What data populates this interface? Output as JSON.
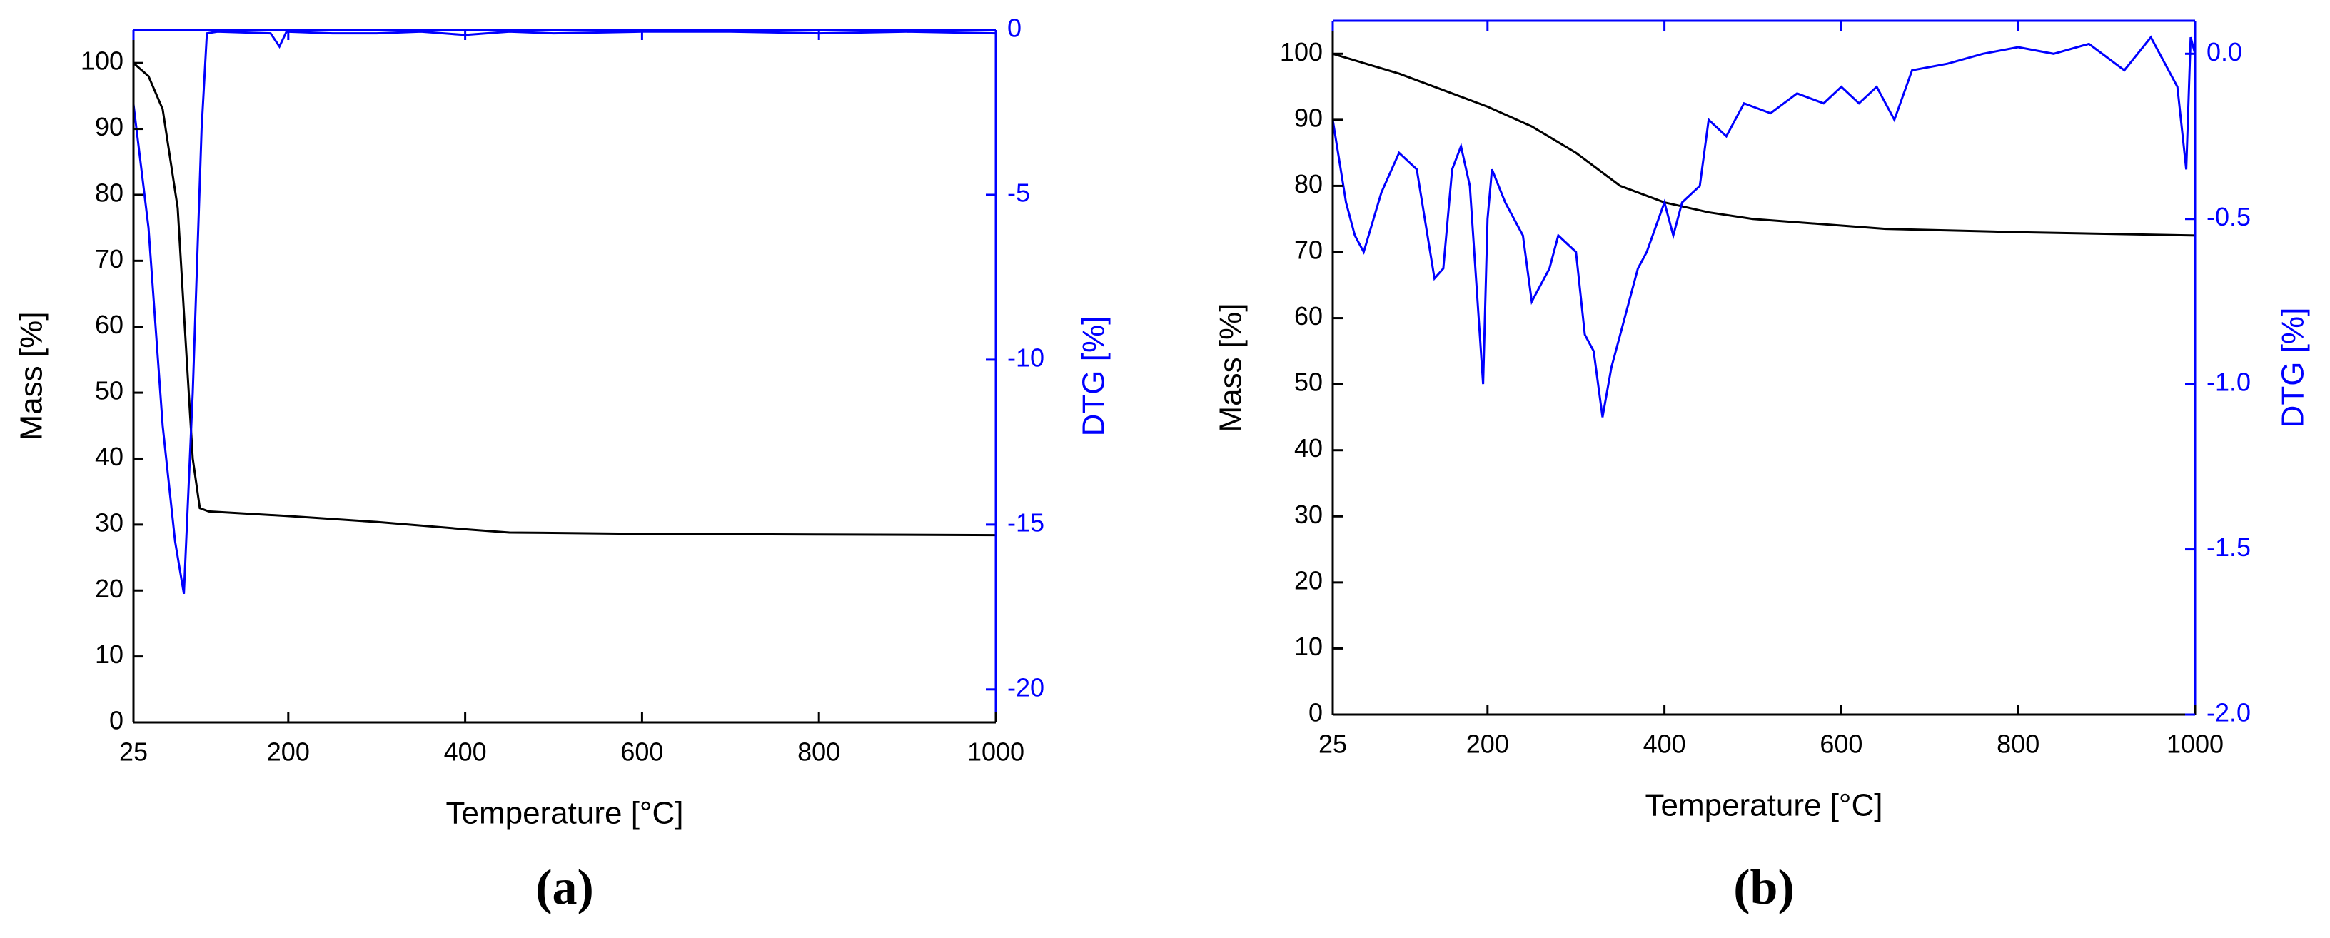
{
  "chart_data": [
    {
      "type": "line",
      "xlabel": "Temperature [°C]",
      "ylabel": "Mass [%]",
      "y2label": "DTG [%]",
      "caption": "(a)",
      "xlim": [
        25,
        1000
      ],
      "xticks": [
        25,
        200,
        400,
        600,
        800,
        1000
      ],
      "ylim": [
        0,
        105
      ],
      "yticks": [
        0,
        10,
        20,
        30,
        40,
        50,
        60,
        70,
        80,
        90,
        100
      ],
      "y2lim": [
        -21,
        0
      ],
      "y2ticks": [
        -20,
        -15,
        -10,
        -5,
        0
      ],
      "series": [
        {
          "color": "#000000",
          "x": [
            25,
            42,
            58,
            75,
            83,
            92,
            100,
            110,
            200,
            300,
            400,
            450,
            600,
            800,
            1000
          ],
          "values": [
            100,
            98,
            93,
            78,
            60,
            40,
            32.5,
            32,
            31.3,
            30.4,
            29.3,
            28.8,
            28.6,
            28.5,
            28.4
          ]
        },
        {
          "color": "#0000ff",
          "axis": "y2",
          "x": [
            25,
            42,
            58,
            72,
            82,
            92,
            102,
            108,
            120,
            180,
            190,
            198,
            250,
            300,
            350,
            400,
            450,
            500,
            600,
            700,
            800,
            900,
            1000
          ],
          "values": [
            -2.25,
            -6,
            -12,
            -15.5,
            -17.1,
            -11,
            -3,
            -0.1,
            -0.05,
            -0.1,
            -0.5,
            -0.05,
            -0.1,
            -0.1,
            -0.05,
            -0.15,
            -0.05,
            -0.1,
            -0.05,
            -0.05,
            -0.1,
            -0.05,
            -0.1
          ]
        }
      ]
    },
    {
      "type": "line",
      "xlabel": "Temperature [°C]",
      "ylabel": "Mass [%]",
      "y2label": "DTG [%]",
      "caption": "(b)",
      "xlim": [
        25,
        1000
      ],
      "xticks": [
        25,
        200,
        400,
        600,
        800,
        1000
      ],
      "ylim": [
        0,
        105
      ],
      "yticks": [
        0,
        10,
        20,
        30,
        40,
        50,
        60,
        70,
        80,
        90,
        100
      ],
      "y2lim": [
        -2.0,
        0.1
      ],
      "y2ticks": [
        {
          "value": -2,
          "label": "-2.0"
        },
        {
          "value": -1.5,
          "label": "-1.5"
        },
        {
          "value": -1,
          "label": "-1.0"
        },
        {
          "value": -0.5,
          "label": "-0.5"
        },
        {
          "value": 0,
          "label": "0.0"
        }
      ],
      "series": [
        {
          "color": "#000000",
          "x": [
            25,
            100,
            150,
            200,
            250,
            300,
            350,
            400,
            450,
            500,
            600,
            650,
            800,
            1000
          ],
          "values": [
            100,
            97,
            94.5,
            92,
            89,
            85,
            80,
            77.5,
            76,
            75,
            74,
            73.5,
            73,
            72.5
          ]
        },
        {
          "color": "#0000ff",
          "axis": "y2",
          "x": [
            25,
            40,
            50,
            60,
            80,
            100,
            120,
            140,
            150,
            160,
            170,
            180,
            190,
            195,
            200,
            205,
            220,
            240,
            250,
            270,
            280,
            300,
            310,
            320,
            330,
            340,
            350,
            370,
            380,
            400,
            410,
            420,
            440,
            450,
            470,
            490,
            520,
            550,
            580,
            600,
            620,
            640,
            660,
            680,
            720,
            760,
            800,
            840,
            880,
            920,
            950,
            980,
            990,
            995,
            1000
          ],
          "values": [
            -0.2,
            -0.45,
            -0.55,
            -0.6,
            -0.42,
            -0.3,
            -0.35,
            -0.68,
            -0.65,
            -0.35,
            -0.28,
            -0.4,
            -0.8,
            -1.0,
            -0.5,
            -0.35,
            -0.45,
            -0.55,
            -0.75,
            -0.65,
            -0.55,
            -0.6,
            -0.85,
            -0.9,
            -1.1,
            -0.95,
            -0.85,
            -0.65,
            -0.6,
            -0.45,
            -0.55,
            -0.45,
            -0.4,
            -0.2,
            -0.25,
            -0.15,
            -0.18,
            -0.12,
            -0.15,
            -0.1,
            -0.15,
            -0.1,
            -0.2,
            -0.05,
            -0.03,
            0,
            0.02,
            0,
            0.03,
            -0.05,
            0.05,
            -0.1,
            -0.35,
            0.05,
            0
          ]
        }
      ]
    }
  ]
}
